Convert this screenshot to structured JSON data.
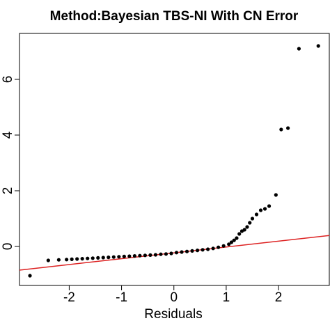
{
  "chart_data": {
    "type": "scatter",
    "title": "Method:Bayesian TBS-NI With CN Error",
    "x_label": "Residuals",
    "x": [
      -2.75,
      -2.4,
      -2.2,
      -2.05,
      -1.95,
      -1.85,
      -1.75,
      -1.65,
      -1.55,
      -1.45,
      -1.35,
      -1.25,
      -1.15,
      -1.05,
      -0.95,
      -0.85,
      -0.75,
      -0.65,
      -0.55,
      -0.45,
      -0.35,
      -0.25,
      -0.15,
      -0.05,
      0.05,
      0.15,
      0.25,
      0.35,
      0.45,
      0.55,
      0.65,
      0.75,
      0.85,
      0.95,
      1.05,
      1.1,
      1.15,
      1.2,
      1.25,
      1.3,
      1.35,
      1.4,
      1.45,
      1.5,
      1.58,
      1.66,
      1.74,
      1.82,
      1.95,
      2.05,
      2.18,
      2.39,
      2.76
    ],
    "values": [
      -1.05,
      -0.5,
      -0.48,
      -0.47,
      -0.46,
      -0.45,
      -0.44,
      -0.43,
      -0.42,
      -0.41,
      -0.4,
      -0.39,
      -0.38,
      -0.37,
      -0.36,
      -0.35,
      -0.34,
      -0.33,
      -0.32,
      -0.31,
      -0.3,
      -0.28,
      -0.27,
      -0.25,
      -0.22,
      -0.2,
      -0.18,
      -0.16,
      -0.14,
      -0.12,
      -0.1,
      -0.07,
      -0.03,
      0.02,
      0.08,
      0.15,
      0.22,
      0.3,
      0.45,
      0.55,
      0.6,
      0.7,
      0.85,
      1.0,
      1.15,
      1.3,
      1.35,
      1.45,
      1.85,
      4.2,
      4.25,
      7.1,
      7.2
    ],
    "color": "#000000",
    "reference_line": {
      "intercept": -0.23,
      "slope": 0.21,
      "color": "#dd2222"
    },
    "xlim": [
      -2.95,
      2.97
    ],
    "ylim": [
      -1.4,
      7.65
    ],
    "xticks": [
      -2,
      -1,
      0,
      1,
      2
    ],
    "yticks": [
      0,
      2,
      4,
      6
    ]
  }
}
